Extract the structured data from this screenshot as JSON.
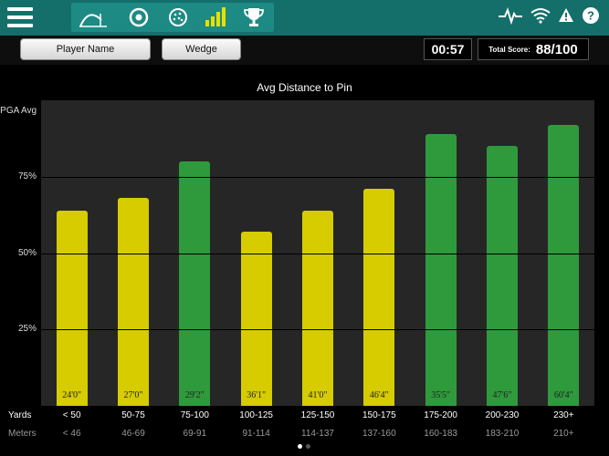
{
  "topbar": {
    "mode_icons": [
      "trajectory-icon",
      "target-icon",
      "golf-ball-icon",
      "signal-bars-icon",
      "trophy-icon"
    ],
    "status_icons": [
      "heartbeat-icon",
      "wifi-icon",
      "warning-icon",
      "help-icon"
    ]
  },
  "toolbar": {
    "player_button": "Player Name",
    "club_button": "Wedge",
    "timer": "00:57",
    "total_score_label": "Total Score:",
    "total_score": "88/100"
  },
  "chart_data": {
    "type": "bar",
    "title": "Avg Distance to Pin",
    "y_axis_label": "PGA Avg",
    "y_ticks": [
      "75%",
      "50%",
      "25%"
    ],
    "ylim": [
      0,
      100
    ],
    "categories": [
      "< 50",
      "50-75",
      "75-100",
      "100-125",
      "125-150",
      "150-175",
      "175-200",
      "200-230",
      "230+"
    ],
    "meters": [
      "< 46",
      "46-69",
      "69-91",
      "91-114",
      "114-137",
      "137-160",
      "160-183",
      "183-210",
      "210+"
    ],
    "values": [
      64,
      68,
      80,
      57,
      64,
      71,
      89,
      85,
      92
    ],
    "bar_labels": [
      "24'0\"",
      "27'0\"",
      "29'2\"",
      "36'1\"",
      "41'0\"",
      "46'4\"",
      "35'5\"",
      "47'6\"",
      "60'4\""
    ],
    "bar_colors": [
      "#d6cc00",
      "#d6cc00",
      "#2f9a3c",
      "#d6cc00",
      "#d6cc00",
      "#d6cc00",
      "#2f9a3c",
      "#2f9a3c",
      "#2f9a3c"
    ],
    "row_labels": {
      "yards": "Yards",
      "meters": "Meters"
    }
  },
  "pagination": {
    "pages": 2,
    "active": 0
  }
}
